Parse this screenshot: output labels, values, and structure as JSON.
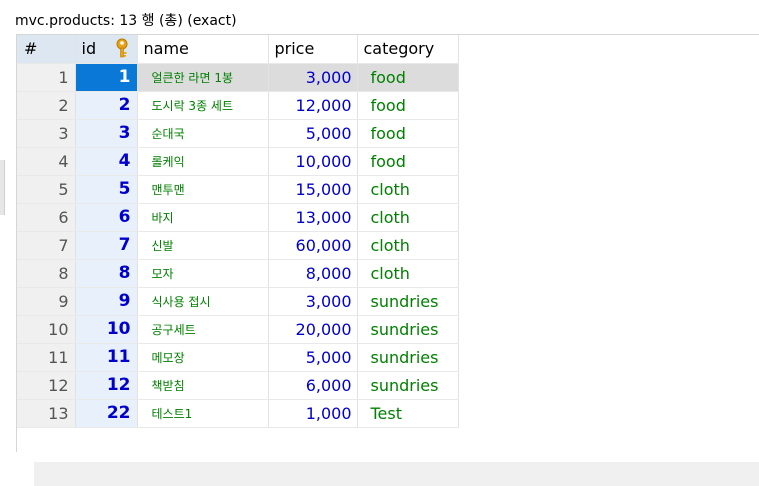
{
  "title": "mvc.products: 13 행 (총) (exact)",
  "columns": {
    "rownum": "#",
    "id": "id",
    "name": "name",
    "price": "price",
    "category": "category"
  },
  "selected_row": 0,
  "rows": [
    {
      "n": "1",
      "id": "1",
      "name": "얼큰한 라면 1봉",
      "price": "3,000",
      "category": "food"
    },
    {
      "n": "2",
      "id": "2",
      "name": "도시락 3종 세트",
      "price": "12,000",
      "category": "food"
    },
    {
      "n": "3",
      "id": "3",
      "name": "순대국",
      "price": "5,000",
      "category": "food"
    },
    {
      "n": "4",
      "id": "4",
      "name": "롤케익",
      "price": "10,000",
      "category": "food"
    },
    {
      "n": "5",
      "id": "5",
      "name": "맨투맨",
      "price": "15,000",
      "category": "cloth"
    },
    {
      "n": "6",
      "id": "6",
      "name": "바지",
      "price": "13,000",
      "category": "cloth"
    },
    {
      "n": "7",
      "id": "7",
      "name": "신발",
      "price": "60,000",
      "category": "cloth"
    },
    {
      "n": "8",
      "id": "8",
      "name": "모자",
      "price": "8,000",
      "category": "cloth"
    },
    {
      "n": "9",
      "id": "9",
      "name": "식사용 접시",
      "price": "3,000",
      "category": "sundries"
    },
    {
      "n": "10",
      "id": "10",
      "name": "공구세트",
      "price": "20,000",
      "category": "sundries"
    },
    {
      "n": "11",
      "id": "11",
      "name": "메모장",
      "price": "5,000",
      "category": "sundries"
    },
    {
      "n": "12",
      "id": "12",
      "name": "책받침",
      "price": "6,000",
      "category": "sundries"
    },
    {
      "n": "13",
      "id": "22",
      "name": "테스트1",
      "price": "1,000",
      "category": "Test"
    }
  ],
  "colors": {
    "id_text": "#0000cc",
    "text_value": "#008000",
    "selection": "#0a78d7"
  },
  "icons": {
    "primary_key": "key-icon"
  }
}
